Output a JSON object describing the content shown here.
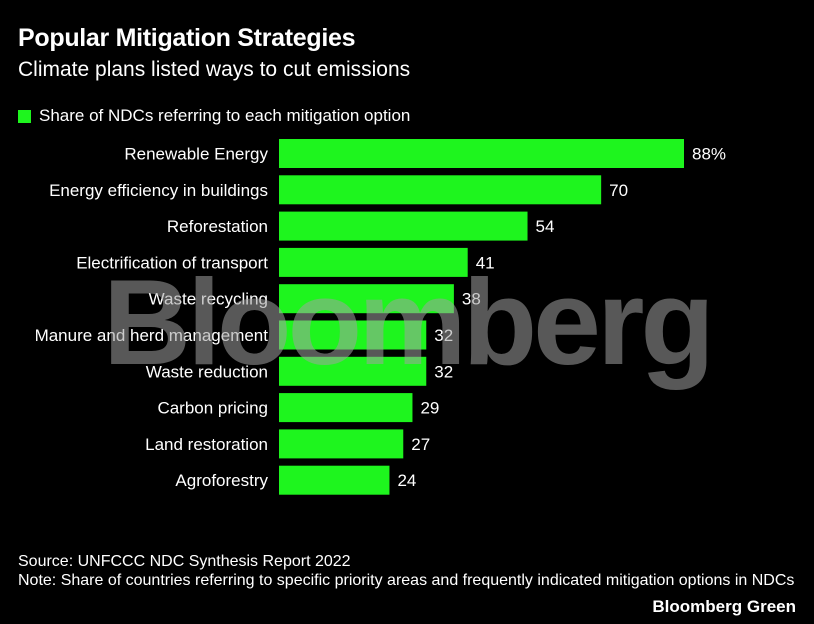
{
  "chart_data": {
    "type": "bar",
    "orientation": "horizontal",
    "title": "Popular Mitigation Strategies",
    "subtitle": "Climate plans listed ways to cut emissions",
    "legend": {
      "label": "Share of NDCs referring to each mitigation option",
      "placement": "top-left"
    },
    "categories": [
      "Renewable Energy",
      "Energy efficiency in buildings",
      "Reforestation",
      "Electrification of transport",
      "Waste recycling",
      "Manure and herd management",
      "Waste reduction",
      "Carbon pricing",
      "Land restoration",
      "Agroforestry"
    ],
    "values": [
      88,
      70,
      54,
      41,
      38,
      32,
      32,
      29,
      27,
      24
    ],
    "data_labels": [
      "88%",
      "70",
      "54",
      "41",
      "38",
      "32",
      "32",
      "29",
      "27",
      "24"
    ],
    "xlim": [
      0,
      88
    ],
    "grid": false,
    "bar_color": "#1ef51e",
    "background": "#000000"
  },
  "footer": {
    "source": "Source: UNFCCC NDC Synthesis Report 2022",
    "note": "Note: Share of countries referring to specific priority areas and frequently indicated mitigation options in NDCs",
    "brand": "Bloomberg Green"
  },
  "watermark": "Bloomberg"
}
